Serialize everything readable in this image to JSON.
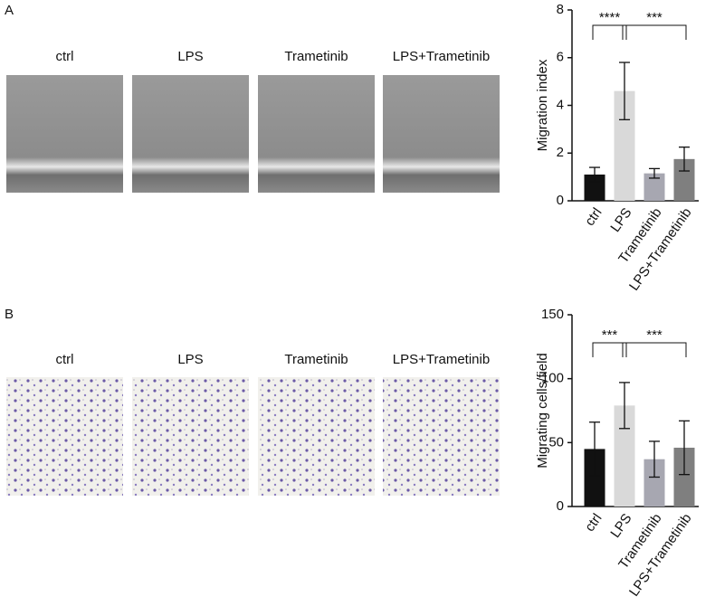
{
  "figure": {
    "panels": [
      {
        "letter": "A",
        "image_labels": [
          "ctrl",
          "LPS",
          "Trametinib",
          "LPS+Trametinib"
        ]
      },
      {
        "letter": "B",
        "image_labels": [
          "ctrl",
          "LPS",
          "Trametinib",
          "LPS+Trametinib"
        ]
      }
    ]
  },
  "chart_data": [
    {
      "type": "bar",
      "y_label": "Migration index",
      "categories": [
        "ctrl",
        "LPS",
        "Trametinib",
        "LPS+Trametinib"
      ],
      "values": [
        1.1,
        4.6,
        1.15,
        1.75
      ],
      "errors": [
        0.3,
        1.2,
        0.2,
        0.5
      ],
      "colors": [
        "#111111",
        "#d9d9d9",
        "#a7a7b1",
        "#7f7f7f"
      ],
      "ylim": [
        0,
        8
      ],
      "yticks": [
        0,
        2,
        4,
        6,
        8
      ],
      "annotations": [
        "****",
        "***"
      ]
    },
    {
      "type": "bar",
      "y_label": "Migrating cells/field",
      "categories": [
        "ctrl",
        "LPS",
        "Trametinib",
        "LPS+Trametinib"
      ],
      "values": [
        45,
        79,
        37,
        46
      ],
      "errors": [
        21,
        18,
        14,
        21
      ],
      "colors": [
        "#111111",
        "#d9d9d9",
        "#a7a7b1",
        "#7f7f7f"
      ],
      "ylim": [
        0,
        150
      ],
      "yticks": [
        0,
        50,
        100,
        150
      ],
      "annotations": [
        "***",
        "***"
      ]
    }
  ]
}
